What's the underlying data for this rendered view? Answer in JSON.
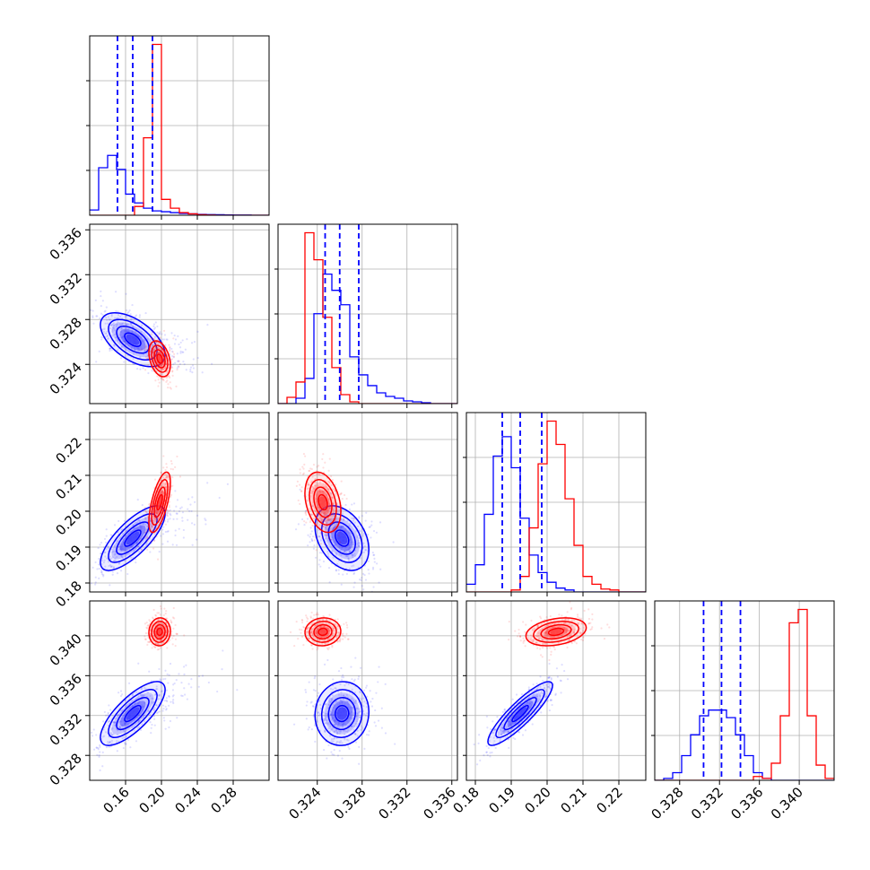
{
  "chart_data": {
    "type": "corner",
    "title": "",
    "parameters": [
      "",
      "",
      "",
      ""
    ],
    "colors": {
      "series_a": "#0000ff",
      "series_b": "#ff0000"
    },
    "grid": true,
    "axes": [
      {
        "range": [
          0.12,
          0.32
        ],
        "ticks": [
          0.16,
          0.2,
          0.24,
          0.28
        ],
        "tick_labels": [
          "0.16",
          "0.20",
          "0.24",
          "0.28"
        ]
      },
      {
        "range": [
          0.3205,
          0.3365
        ],
        "ticks": [
          0.324,
          0.328,
          0.332,
          0.336
        ],
        "tick_labels": [
          "0.324",
          "0.328",
          "0.332",
          "0.336"
        ]
      },
      {
        "range": [
          0.1775,
          0.2275
        ],
        "ticks": [
          0.18,
          0.19,
          0.2,
          0.21,
          0.22
        ],
        "tick_labels": [
          "0.18",
          "0.19",
          "0.20",
          "0.21",
          "0.22"
        ]
      },
      {
        "range": [
          0.3255,
          0.3435
        ],
        "ticks": [
          0.328,
          0.332,
          0.336,
          0.34
        ],
        "tick_labels": [
          "0.328",
          "0.332",
          "0.336",
          "0.340"
        ]
      }
    ],
    "series": [
      {
        "color": "#0000ff",
        "mean": [
          0.168,
          0.3262,
          0.1925,
          0.3322
        ],
        "std": [
          0.018,
          0.0012,
          0.0045,
          0.0016
        ],
        "quantiles": [
          [
            0.151,
            0.168,
            0.19
          ],
          [
            0.3247,
            0.326,
            0.3277
          ],
          [
            0.1875,
            0.1925,
            0.1985
          ],
          [
            0.3304,
            0.3322,
            0.3341
          ]
        ],
        "corr": {
          "0-1": -0.55,
          "0-2": 0.75,
          "0-3": 0.75,
          "1-2": -0.35,
          "1-3": 0.05,
          "2-3": 0.88
        }
      },
      {
        "color": "#ff0000",
        "mean": [
          0.198,
          0.3245,
          0.2025,
          0.3404
        ],
        "std": [
          0.006,
          0.0008,
          0.0042,
          0.0007
        ],
        "quantiles": null,
        "corr": {
          "0-1": -0.35,
          "0-2": 0.65,
          "0-3": 0.05,
          "1-2": -0.3,
          "1-3": 0.05,
          "2-3": 0.3
        }
      }
    ],
    "histograms": [
      {
        "edges_range": [
          0.12,
          0.32
        ],
        "bins": 20,
        "blue": [
          0.03,
          0.27,
          0.34,
          0.26,
          0.12,
          0.07,
          0.04,
          0.025,
          0.02,
          0.015,
          0.01,
          0.008,
          0.005,
          0.004,
          0.003,
          0.002,
          0.001,
          0.001,
          0,
          0
        ],
        "red": [
          0,
          0,
          0,
          0,
          0,
          0.05,
          0.44,
          0.97,
          0.09,
          0.04,
          0.015,
          0.008,
          0.003,
          0.001,
          0,
          0,
          0,
          0,
          0,
          0
        ]
      },
      {
        "edges_range": [
          0.3205,
          0.3365
        ],
        "bins": 20,
        "blue": [
          0,
          0,
          0.03,
          0.14,
          0.5,
          0.72,
          0.63,
          0.55,
          0.26,
          0.16,
          0.1,
          0.06,
          0.04,
          0.03,
          0.015,
          0.01,
          0.005,
          0,
          0,
          0
        ],
        "red": [
          0,
          0.035,
          0.12,
          0.95,
          0.8,
          0.48,
          0.2,
          0.05,
          0.01,
          0,
          0,
          0,
          0,
          0,
          0,
          0,
          0,
          0,
          0,
          0
        ]
      },
      {
        "edges_range": [
          0.1775,
          0.2275
        ],
        "bins": 20,
        "blue": [
          0.04,
          0.14,
          0.4,
          0.7,
          0.8,
          0.64,
          0.38,
          0.19,
          0.1,
          0.05,
          0.02,
          0.01,
          0,
          0,
          0,
          0,
          0,
          0,
          0,
          0
        ],
        "red": [
          0,
          0,
          0,
          0,
          0,
          0.01,
          0.08,
          0.33,
          0.66,
          0.88,
          0.76,
          0.48,
          0.24,
          0.08,
          0.04,
          0.015,
          0.01,
          0,
          0,
          0
        ]
      },
      {
        "edges_range": [
          0.3255,
          0.3435
        ],
        "bins": 20,
        "blue": [
          0,
          0.01,
          0.04,
          0.13,
          0.24,
          0.34,
          0.37,
          0.37,
          0.33,
          0.24,
          0.13,
          0.04,
          0.01,
          0,
          0,
          0,
          0,
          0,
          0,
          0
        ],
        "red": [
          0,
          0,
          0,
          0,
          0,
          0,
          0,
          0,
          0,
          0,
          0,
          0.02,
          0.01,
          0.09,
          0.34,
          0.83,
          0.9,
          0.34,
          0.08,
          0.01
        ]
      }
    ]
  }
}
